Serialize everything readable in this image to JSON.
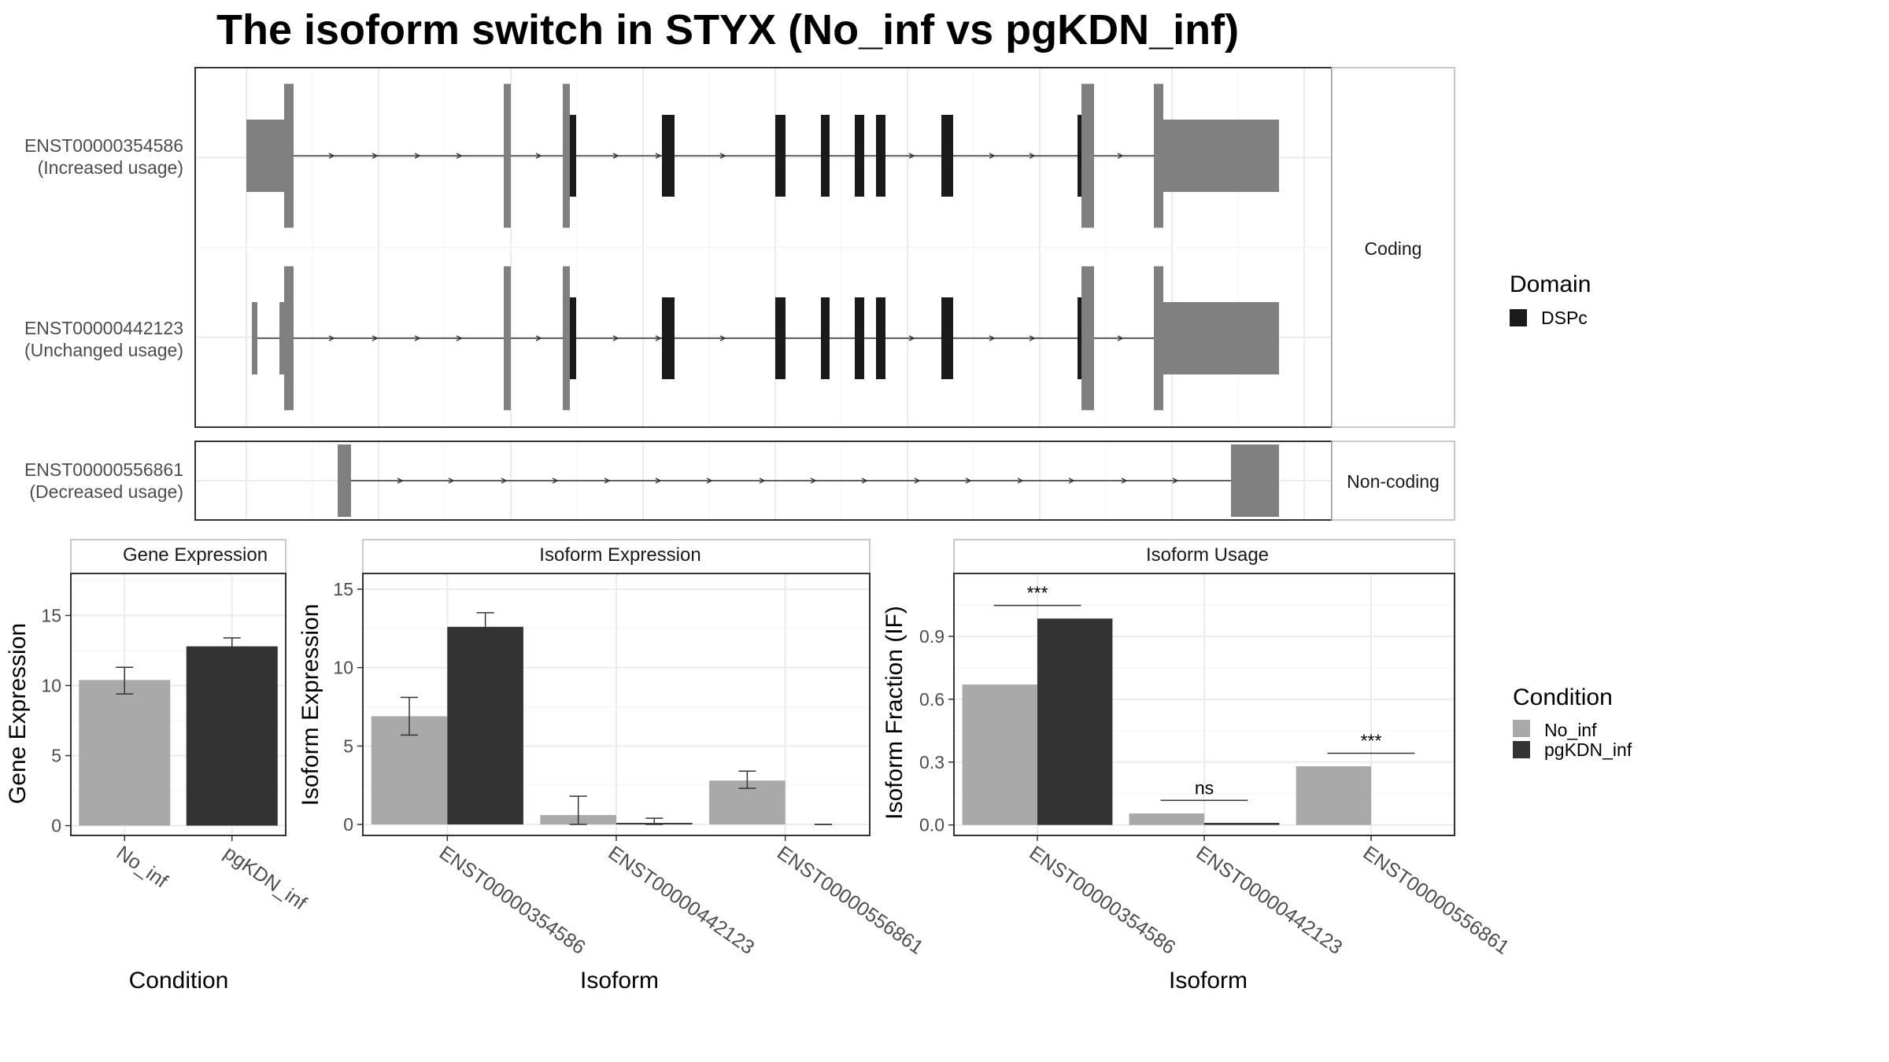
{
  "title": "The isoform switch in STYX (No_inf vs pgKDN_inf)",
  "chart_data": [
    {
      "type": "isoform-structure",
      "coding_label": "Coding",
      "noncoding_label": "Non-coding",
      "isoforms": [
        {
          "id": "ENST00000354586",
          "usage": "(Increased usage)",
          "group": "coding"
        },
        {
          "id": "ENST00000442123",
          "usage": "(Unchanged usage)",
          "group": "coding"
        },
        {
          "id": "ENST00000556861",
          "usage": "(Decreased usage)",
          "group": "non-coding"
        }
      ],
      "legend": {
        "title": "Domain",
        "items": [
          {
            "label": "DSPc",
            "color": "#1a1a1a"
          }
        ]
      },
      "colors": {
        "exon": "#808080",
        "domain": "#1a1a1a"
      }
    },
    {
      "type": "bar",
      "title": "Gene Expression",
      "xlabel": "Condition",
      "ylabel": "Gene Expression",
      "categories": [
        "No_inf",
        "pgKDN_inf"
      ],
      "values": [
        10.4,
        12.8
      ],
      "error": [
        [
          9.4,
          11.3
        ],
        [
          12.2,
          13.4
        ]
      ],
      "ylim": [
        -0.7,
        18
      ],
      "yticks": [
        "0",
        "5",
        "10",
        "15"
      ]
    },
    {
      "type": "bar",
      "title": "Isoform Expression",
      "xlabel": "Isoform",
      "ylabel": "Isoform Expression",
      "categories": [
        "ENST00000354586",
        "ENST00000442123",
        "ENST00000556861"
      ],
      "series": [
        {
          "name": "No_inf",
          "values": [
            6.9,
            0.6,
            2.8
          ],
          "error": [
            [
              5.7,
              8.1
            ],
            [
              0.0,
              1.8
            ],
            [
              2.3,
              3.4
            ]
          ]
        },
        {
          "name": "pgKDN_inf",
          "values": [
            12.6,
            0.1,
            0.0
          ],
          "error": [
            [
              11.8,
              13.5
            ],
            [
              0.0,
              0.4
            ],
            [
              0.0,
              0.0
            ]
          ]
        }
      ],
      "ylim": [
        -0.7,
        16
      ],
      "yticks": [
        "0",
        "5",
        "10",
        "15"
      ]
    },
    {
      "type": "bar",
      "title": "Isoform Usage",
      "xlabel": "Isoform",
      "ylabel": "Isoform Fraction (IF)",
      "categories": [
        "ENST00000354586",
        "ENST00000442123",
        "ENST00000556861"
      ],
      "series": [
        {
          "name": "No_inf",
          "values": [
            0.67,
            0.055,
            0.28
          ]
        },
        {
          "name": "pgKDN_inf",
          "values": [
            0.985,
            0.01,
            0.0
          ]
        }
      ],
      "significance": [
        "***",
        "ns",
        "***"
      ],
      "ylim": [
        -0.05,
        1.2
      ],
      "yticks": [
        "0.0",
        "0.3",
        "0.6",
        "0.9"
      ]
    }
  ],
  "condition_legend": {
    "title": "Condition",
    "items": [
      {
        "label": "No_inf",
        "color": "#a9a9a9"
      },
      {
        "label": "pgKDN_inf",
        "color": "#333333"
      }
    ]
  }
}
